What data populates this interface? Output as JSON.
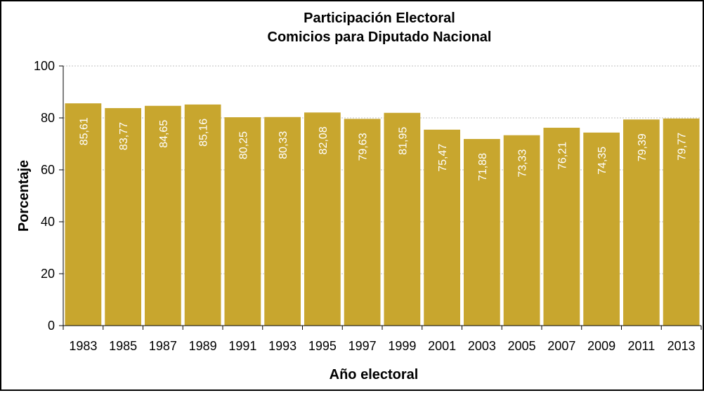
{
  "chart_data": {
    "type": "bar",
    "title": "Participación Electoral",
    "subtitle": "Comicios para Diputado Nacional",
    "xlabel": "Año electoral",
    "ylabel": "Porcentaje",
    "categories": [
      "1983",
      "1985",
      "1987",
      "1989",
      "1991",
      "1993",
      "1995",
      "1997",
      "1999",
      "2001",
      "2003",
      "2005",
      "2007",
      "2009",
      "2011",
      "2013"
    ],
    "values": [
      85.61,
      83.77,
      84.65,
      85.16,
      80.25,
      80.33,
      82.08,
      79.63,
      81.95,
      75.47,
      71.88,
      73.33,
      76.21,
      74.35,
      79.39,
      79.77
    ],
    "value_labels": [
      "85,61",
      "83,77",
      "84,65",
      "85,16",
      "80,25",
      "80,33",
      "82,08",
      "79,63",
      "81,95",
      "75,47",
      "71,88",
      "73,33",
      "76,21",
      "74,35",
      "79,39",
      "79,77"
    ],
    "yticks": [
      "0",
      "20",
      "40",
      "60",
      "80",
      "100"
    ],
    "ylim": [
      0,
      100
    ],
    "grid": true,
    "legend": "none",
    "bar_color": "#C8A62E",
    "grid_color": "#BFBFBF"
  }
}
